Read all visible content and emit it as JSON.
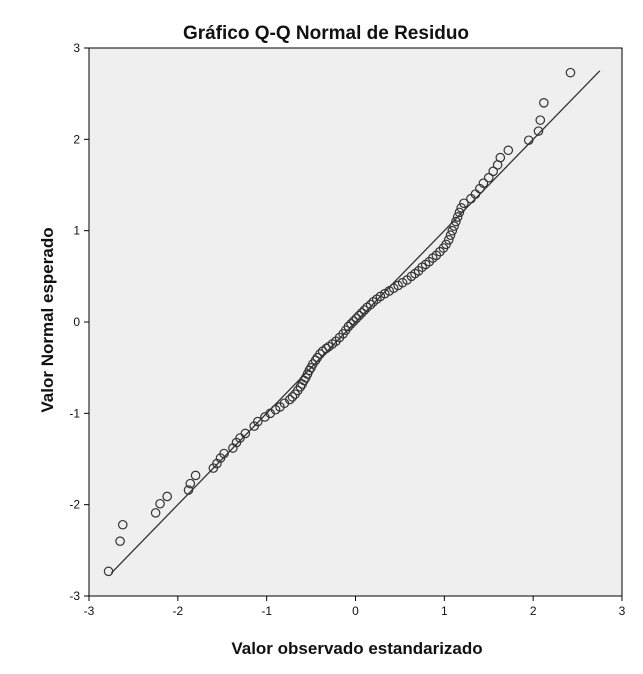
{
  "chart_data": {
    "type": "scatter",
    "title": "Gráfico Q-Q Normal de Residuo",
    "xlabel": "Valor observado estandarizado",
    "ylabel": "Valor Normal esperado",
    "xlim": [
      -3,
      3
    ],
    "ylim": [
      -3,
      3
    ],
    "x_ticks": [
      "-3",
      "-2",
      "-1",
      "0",
      "1",
      "2",
      "3"
    ],
    "y_ticks": [
      "-3",
      "-2",
      "-1",
      "0",
      "1",
      "2",
      "3"
    ],
    "grid": false,
    "legend": "none",
    "colors": {
      "plot_background": "#efefef",
      "marker_stroke": "#333333",
      "line": "#333333"
    },
    "reference_line": {
      "from": [
        -2.75,
        -2.75
      ],
      "to": [
        2.75,
        2.75
      ]
    },
    "points": [
      [
        -2.78,
        -2.73
      ],
      [
        -2.65,
        -2.4
      ],
      [
        -2.62,
        -2.22
      ],
      [
        -2.25,
        -2.09
      ],
      [
        -2.2,
        -1.99
      ],
      [
        -2.12,
        -1.91
      ],
      [
        -1.88,
        -1.84
      ],
      [
        -1.86,
        -1.77
      ],
      [
        -1.8,
        -1.68
      ],
      [
        -1.6,
        -1.6
      ],
      [
        -1.56,
        -1.55
      ],
      [
        -1.52,
        -1.49
      ],
      [
        -1.48,
        -1.44
      ],
      [
        -1.38,
        -1.38
      ],
      [
        -1.34,
        -1.32
      ],
      [
        -1.3,
        -1.27
      ],
      [
        -1.24,
        -1.22
      ],
      [
        -1.14,
        -1.14
      ],
      [
        -1.1,
        -1.09
      ],
      [
        -1.02,
        -1.04
      ],
      [
        -0.96,
        -1.0
      ],
      [
        -0.9,
        -0.96
      ],
      [
        -0.85,
        -0.93
      ],
      [
        -0.8,
        -0.89
      ],
      [
        -0.74,
        -0.85
      ],
      [
        -0.71,
        -0.82
      ],
      [
        -0.68,
        -0.79
      ],
      [
        -0.65,
        -0.75
      ],
      [
        -0.62,
        -0.71
      ],
      [
        -0.6,
        -0.68
      ],
      [
        -0.58,
        -0.64
      ],
      [
        -0.56,
        -0.61
      ],
      [
        -0.54,
        -0.57
      ],
      [
        -0.52,
        -0.53
      ],
      [
        -0.5,
        -0.5
      ],
      [
        -0.48,
        -0.46
      ],
      [
        -0.45,
        -0.42
      ],
      [
        -0.43,
        -0.39
      ],
      [
        -0.4,
        -0.35
      ],
      [
        -0.37,
        -0.32
      ],
      [
        -0.33,
        -0.29
      ],
      [
        -0.3,
        -0.27
      ],
      [
        -0.26,
        -0.24
      ],
      [
        -0.22,
        -0.21
      ],
      [
        -0.18,
        -0.17
      ],
      [
        -0.14,
        -0.13
      ],
      [
        -0.11,
        -0.09
      ],
      [
        -0.08,
        -0.05
      ],
      [
        -0.05,
        -0.02
      ],
      [
        -0.02,
        0.01
      ],
      [
        0.01,
        0.04
      ],
      [
        0.04,
        0.07
      ],
      [
        0.07,
        0.1
      ],
      [
        0.1,
        0.13
      ],
      [
        0.13,
        0.16
      ],
      [
        0.17,
        0.19
      ],
      [
        0.2,
        0.22
      ],
      [
        0.24,
        0.25
      ],
      [
        0.28,
        0.28
      ],
      [
        0.33,
        0.31
      ],
      [
        0.38,
        0.34
      ],
      [
        0.43,
        0.37
      ],
      [
        0.48,
        0.4
      ],
      [
        0.53,
        0.43
      ],
      [
        0.58,
        0.46
      ],
      [
        0.63,
        0.5
      ],
      [
        0.67,
        0.53
      ],
      [
        0.71,
        0.56
      ],
      [
        0.75,
        0.6
      ],
      [
        0.79,
        0.63
      ],
      [
        0.83,
        0.66
      ],
      [
        0.87,
        0.7
      ],
      [
        0.91,
        0.73
      ],
      [
        0.95,
        0.77
      ],
      [
        0.99,
        0.81
      ],
      [
        1.02,
        0.85
      ],
      [
        1.05,
        0.9
      ],
      [
        1.07,
        0.95
      ],
      [
        1.09,
        1.0
      ],
      [
        1.11,
        1.05
      ],
      [
        1.13,
        1.1
      ],
      [
        1.15,
        1.15
      ],
      [
        1.17,
        1.2
      ],
      [
        1.19,
        1.25
      ],
      [
        1.22,
        1.3
      ],
      [
        1.3,
        1.35
      ],
      [
        1.35,
        1.4
      ],
      [
        1.4,
        1.46
      ],
      [
        1.44,
        1.52
      ],
      [
        1.5,
        1.58
      ],
      [
        1.55,
        1.65
      ],
      [
        1.6,
        1.72
      ],
      [
        1.63,
        1.8
      ],
      [
        1.72,
        1.88
      ],
      [
        1.95,
        1.99
      ],
      [
        2.06,
        2.09
      ],
      [
        2.08,
        2.21
      ],
      [
        2.12,
        2.4
      ],
      [
        2.42,
        2.73
      ]
    ]
  }
}
